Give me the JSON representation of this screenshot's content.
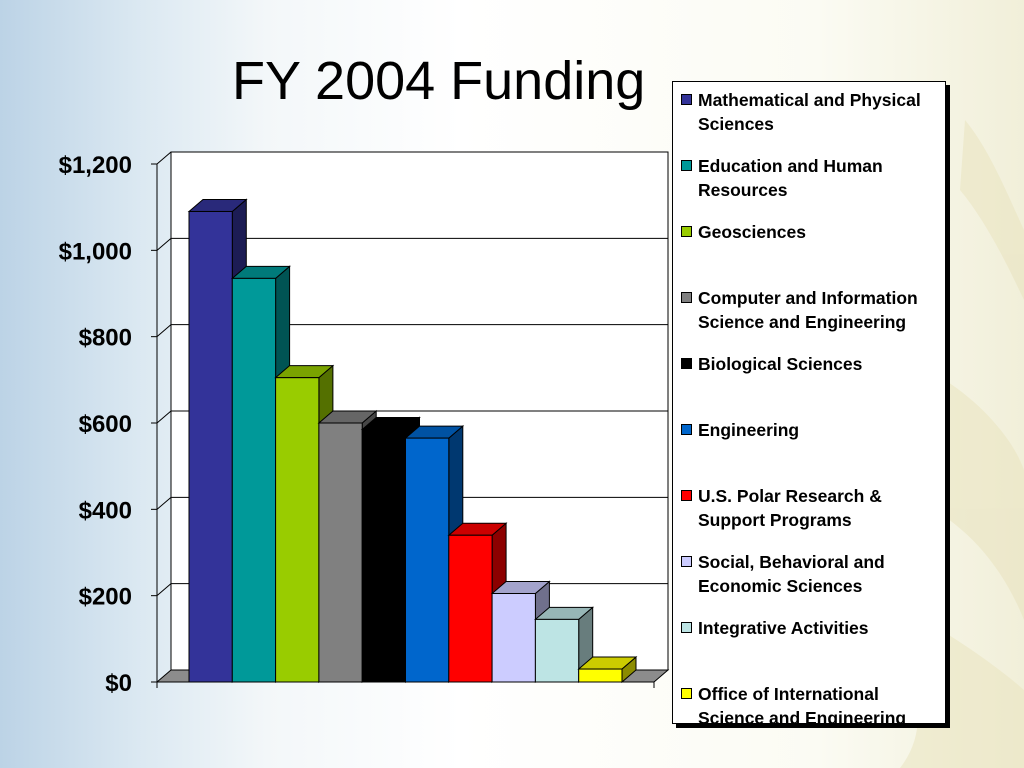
{
  "slide": {
    "title": "FY 2004 Funding"
  },
  "chart_data": {
    "type": "bar",
    "style": "3d-column",
    "title": "FY 2004 Funding",
    "xlabel": "",
    "ylabel": "",
    "ylim": [
      0,
      1200
    ],
    "yticks": [
      0,
      200,
      400,
      600,
      800,
      1000,
      1200
    ],
    "ytick_labels": [
      "$0",
      "$200",
      "$400",
      "$600",
      "$800",
      "$1,000",
      "$1,200"
    ],
    "grid": true,
    "legend_position": "right",
    "categories": [
      "Mathematical and Physical Sciences",
      "Education and Human Resources",
      "Geosciences",
      "Computer and Information Science and Engineering",
      "Biological Sciences",
      "Engineering",
      "U.S. Polar Research & Support Programs",
      "Social, Behavioral and Economic Sciences",
      "Integrative Activities",
      "Office of International Science and Engineering"
    ],
    "values": [
      1090,
      935,
      705,
      600,
      585,
      565,
      340,
      205,
      145,
      30
    ],
    "colors": [
      "#333399",
      "#009999",
      "#99cc00",
      "#808080",
      "#000000",
      "#0066cc",
      "#ff0000",
      "#ccccff",
      "#bde4e4",
      "#ffff00"
    ]
  }
}
